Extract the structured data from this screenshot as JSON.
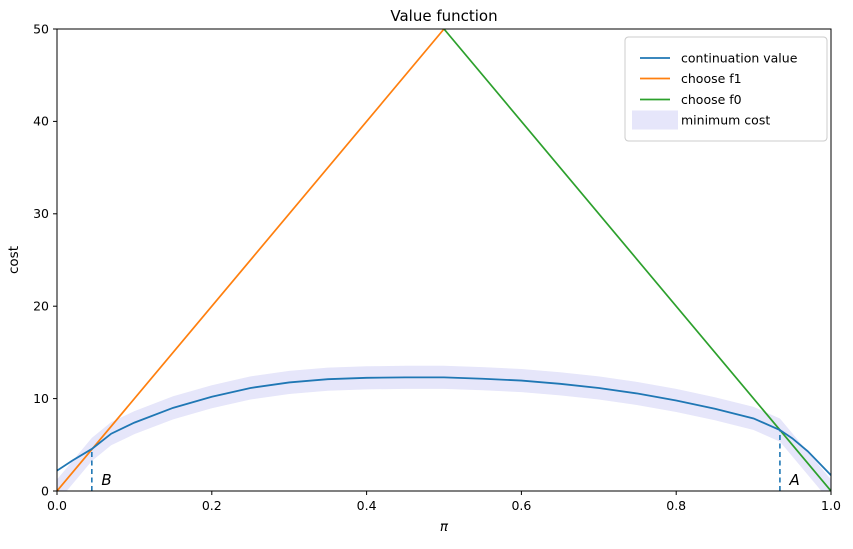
{
  "figure": {
    "background": "#ffffff"
  },
  "chart_data": {
    "type": "line",
    "title": "Value function",
    "xlabel": "π",
    "ylabel": "cost",
    "xlim": [
      0.0,
      1.0
    ],
    "ylim": [
      0,
      50
    ],
    "grid": false,
    "legend_position": "upper right",
    "xticks": {
      "values": [
        0.0,
        0.2,
        0.4,
        0.6,
        0.8,
        1.0
      ],
      "labels": [
        "0.0",
        "0.2",
        "0.4",
        "0.6",
        "0.8",
        "1.0"
      ]
    },
    "yticks": {
      "values": [
        0,
        10,
        20,
        30,
        40,
        50
      ],
      "labels": [
        "0",
        "10",
        "20",
        "30",
        "40",
        "50"
      ]
    },
    "series": [
      {
        "name": "continuation value",
        "color": "#1f77b4",
        "points": [
          [
            0.0,
            2.2
          ],
          [
            0.02,
            3.3
          ],
          [
            0.045,
            4.55
          ],
          [
            0.07,
            6.2
          ],
          [
            0.1,
            7.4
          ],
          [
            0.15,
            9.0
          ],
          [
            0.2,
            10.2
          ],
          [
            0.25,
            11.15
          ],
          [
            0.3,
            11.75
          ],
          [
            0.35,
            12.1
          ],
          [
            0.4,
            12.25
          ],
          [
            0.45,
            12.3
          ],
          [
            0.5,
            12.3
          ],
          [
            0.55,
            12.15
          ],
          [
            0.6,
            11.95
          ],
          [
            0.65,
            11.6
          ],
          [
            0.7,
            11.15
          ],
          [
            0.75,
            10.55
          ],
          [
            0.8,
            9.8
          ],
          [
            0.85,
            8.9
          ],
          [
            0.9,
            7.85
          ],
          [
            0.934,
            6.6
          ],
          [
            0.95,
            5.7
          ],
          [
            0.97,
            4.3
          ],
          [
            0.985,
            3.0
          ],
          [
            1.0,
            1.7
          ]
        ]
      },
      {
        "name": "choose f1",
        "color": "#ff7f0e",
        "points": [
          [
            0.0,
            0
          ],
          [
            0.5,
            50
          ]
        ]
      },
      {
        "name": "choose f0",
        "color": "#2ca02c",
        "points": [
          [
            0.5,
            50
          ],
          [
            1.0,
            0
          ]
        ]
      }
    ],
    "band": {
      "name": "minimum cost",
      "color": "#e6e6fa",
      "half_width": 1.25,
      "center_points": [
        [
          0.0,
          0
        ],
        [
          0.045,
          4.5
        ],
        [
          0.07,
          6.2
        ],
        [
          0.1,
          7.4
        ],
        [
          0.15,
          9.0
        ],
        [
          0.2,
          10.2
        ],
        [
          0.25,
          11.15
        ],
        [
          0.3,
          11.75
        ],
        [
          0.35,
          12.1
        ],
        [
          0.4,
          12.25
        ],
        [
          0.45,
          12.3
        ],
        [
          0.5,
          12.3
        ],
        [
          0.55,
          12.15
        ],
        [
          0.6,
          11.95
        ],
        [
          0.65,
          11.6
        ],
        [
          0.7,
          11.15
        ],
        [
          0.75,
          10.55
        ],
        [
          0.8,
          9.8
        ],
        [
          0.85,
          8.9
        ],
        [
          0.9,
          7.85
        ],
        [
          0.934,
          6.6
        ],
        [
          1.0,
          0
        ]
      ]
    },
    "annotations": [
      {
        "label": "B",
        "x": 0.045,
        "y_top": 4.5,
        "label_x": 0.064,
        "label_y": 1.2,
        "color": "#1f77b4"
      },
      {
        "label": "A",
        "x": 0.934,
        "y_top": 6.6,
        "label_x": 0.953,
        "label_y": 1.2,
        "color": "#1f77b4"
      }
    ],
    "legend": [
      {
        "label": "continuation value",
        "type": "line",
        "color": "#1f77b4"
      },
      {
        "label": "choose f1",
        "type": "line",
        "color": "#ff7f0e"
      },
      {
        "label": "choose f0",
        "type": "line",
        "color": "#2ca02c"
      },
      {
        "label": "minimum cost",
        "type": "patch",
        "color": "#e6e6fa"
      }
    ]
  }
}
